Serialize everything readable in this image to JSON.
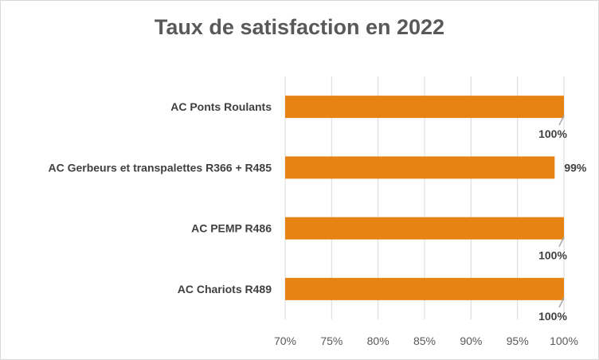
{
  "chart_data": {
    "type": "bar",
    "orientation": "horizontal",
    "title": "Taux de satisfaction en 2022",
    "categories": [
      "AC Ponts Roulants",
      "AC Gerbeurs et transpalettes R366 + R485",
      "AC PEMP R486",
      "AC Chariots R489"
    ],
    "values": [
      100,
      99,
      100,
      100
    ],
    "data_labels": [
      "100%",
      "99%",
      "100%",
      "100%"
    ],
    "xlim": [
      70,
      100
    ],
    "xticks": [
      "70%",
      "75%",
      "80%",
      "85%",
      "90%",
      "95%",
      "100%"
    ],
    "xlabel": "",
    "ylabel": "",
    "grid": true,
    "bar_color": "#E68312",
    "gridline_color": "#d9d9d9"
  }
}
